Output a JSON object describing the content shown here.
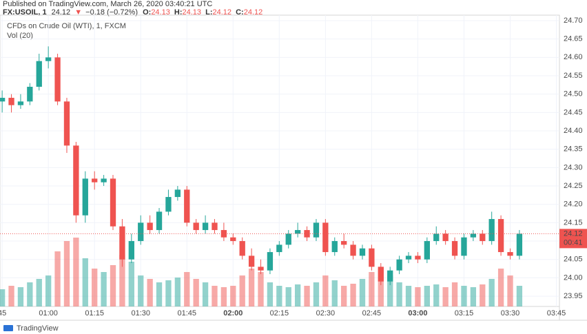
{
  "header": {
    "published": "Published on TradingView.com, March 26, 2020 03:40:21 UTC",
    "symbol": "FX:USOIL, 1",
    "last": "24.12",
    "arrow": "▼",
    "change": "−0.18 (−0.72%)",
    "o_label": "O:",
    "o": "24.13",
    "h_label": "H:",
    "h": "24.13",
    "l_label": "L:",
    "l": "24.12",
    "c_label": "C:",
    "c": "24.12"
  },
  "footer": {
    "brand": "TradingView"
  },
  "chart_data": {
    "type": "candlestick",
    "legend": [
      "CFDs on Crude Oil (WTI), 1, FXCM",
      "Vol (20)"
    ],
    "up_color": "#26a69a",
    "down_color": "#ef5350",
    "x": [
      45,
      48,
      51,
      54,
      57,
      60,
      63,
      66,
      69,
      72,
      75,
      78,
      81,
      84,
      87,
      90,
      93,
      96,
      99,
      102,
      105,
      108,
      111,
      114,
      117,
      120,
      123,
      126,
      129,
      132,
      135,
      138,
      141,
      144,
      147,
      150,
      153,
      156,
      159,
      162,
      165,
      168,
      171,
      174,
      177,
      180,
      183,
      186,
      189,
      192,
      195,
      198,
      201,
      204,
      207,
      210,
      213
    ],
    "open": [
      24.48,
      24.49,
      24.47,
      24.48,
      24.52,
      24.59,
      24.6,
      24.48,
      24.36,
      24.17,
      24.27,
      24.26,
      24.27,
      24.14,
      24.05,
      24.1,
      24.15,
      24.13,
      24.18,
      24.22,
      24.24,
      24.15,
      24.13,
      24.15,
      24.13,
      24.11,
      24.1,
      24.06,
      24.03,
      24.02,
      24.07,
      24.09,
      24.12,
      24.13,
      24.11,
      24.15,
      24.07,
      24.1,
      24.09,
      24.06,
      24.08,
      24.03,
      23.99,
      24.02,
      24.05,
      24.06,
      24.05,
      24.1,
      24.12,
      24.1,
      24.06,
      24.11,
      24.12,
      24.1,
      24.16,
      24.07,
      24.06
    ],
    "high": [
      24.51,
      24.5,
      24.5,
      24.53,
      24.61,
      24.63,
      24.61,
      24.49,
      24.37,
      24.29,
      24.29,
      24.28,
      24.28,
      24.16,
      24.12,
      24.17,
      24.17,
      24.19,
      24.24,
      24.25,
      24.25,
      24.16,
      24.17,
      24.16,
      24.15,
      24.12,
      24.11,
      24.08,
      24.05,
      24.08,
      24.1,
      24.13,
      24.15,
      24.14,
      24.16,
      24.16,
      24.11,
      24.12,
      24.1,
      24.09,
      24.09,
      24.04,
      24.03,
      24.06,
      24.07,
      24.07,
      24.11,
      24.14,
      24.13,
      24.11,
      24.12,
      24.13,
      24.13,
      24.18,
      24.17,
      24.08,
      24.13
    ],
    "low": [
      24.45,
      24.45,
      24.46,
      24.47,
      24.51,
      24.57,
      24.47,
      24.34,
      24.15,
      24.15,
      24.24,
      24.25,
      24.13,
      24.03,
      24.04,
      24.09,
      24.12,
      24.12,
      24.17,
      24.21,
      24.14,
      24.12,
      24.12,
      24.12,
      24.1,
      24.09,
      24.05,
      24.02,
      24.01,
      24.01,
      24.06,
      24.08,
      24.11,
      24.1,
      24.1,
      24.06,
      24.06,
      24.08,
      24.05,
      24.05,
      24.02,
      23.98,
      23.98,
      24.01,
      24.04,
      24.04,
      24.04,
      24.09,
      24.09,
      24.05,
      24.05,
      24.1,
      24.09,
      24.09,
      24.06,
      24.05,
      24.05
    ],
    "close": [
      24.49,
      24.47,
      24.48,
      24.52,
      24.59,
      24.6,
      24.48,
      24.36,
      24.17,
      24.27,
      24.26,
      24.27,
      24.14,
      24.05,
      24.1,
      24.15,
      24.13,
      24.18,
      24.22,
      24.24,
      24.15,
      24.13,
      24.15,
      24.13,
      24.11,
      24.1,
      24.06,
      24.03,
      24.02,
      24.07,
      24.09,
      24.12,
      24.13,
      24.11,
      24.15,
      24.07,
      24.1,
      24.09,
      24.06,
      24.08,
      24.03,
      23.99,
      24.02,
      24.05,
      24.06,
      24.05,
      24.1,
      24.12,
      24.1,
      24.06,
      24.11,
      24.12,
      24.1,
      24.16,
      24.07,
      24.06,
      24.12
    ],
    "volume": [
      25,
      30,
      28,
      35,
      40,
      45,
      80,
      95,
      100,
      70,
      55,
      50,
      60,
      75,
      65,
      45,
      40,
      35,
      38,
      42,
      50,
      40,
      35,
      30,
      28,
      30,
      45,
      55,
      50,
      35,
      30,
      28,
      32,
      30,
      35,
      45,
      38,
      30,
      33,
      40,
      50,
      55,
      45,
      35,
      30,
      28,
      30,
      32,
      28,
      35,
      30,
      28,
      32,
      40,
      55,
      45,
      30
    ],
    "vlim": [
      0,
      105
    ],
    "last_price": 24.12,
    "last_label": "24.12",
    "countdown": "00:41",
    "xlim": [
      44.3,
      226
    ],
    "ylim": [
      23.922,
      24.715
    ],
    "xticks": [
      45,
      {
        "value": 60,
        "label": "01:00"
      },
      {
        "value": 75,
        "label": "01:15"
      },
      {
        "value": 90,
        "label": "01:30"
      },
      {
        "value": 105,
        "label": "01:45"
      },
      {
        "value": 120,
        "label": "02:00"
      },
      {
        "value": 135,
        "label": "02:15"
      },
      {
        "value": 150,
        "label": "02:30"
      },
      {
        "value": 165,
        "label": "02:45"
      },
      {
        "value": 180,
        "label": "03:00"
      },
      {
        "value": 195,
        "label": "03:15"
      },
      {
        "value": 210,
        "label": "03:30"
      },
      {
        "value": 225,
        "label": "03:45"
      }
    ],
    "yticks": [
      {
        "value": 23.95,
        "label": "23.95"
      },
      {
        "value": 24.0,
        "label": "24.00"
      },
      24.05,
      {
        "value": 24.1,
        "label": "24.10"
      },
      24.15,
      {
        "value": 24.2,
        "label": "24.20"
      },
      24.25,
      {
        "value": 24.3,
        "label": "24.30"
      },
      24.35,
      {
        "value": 24.4,
        "label": "24.40"
      },
      24.45,
      {
        "value": 24.5,
        "label": "24.50"
      },
      24.55,
      {
        "value": 24.6,
        "label": "24.60"
      },
      24.65,
      {
        "value": 24.7,
        "label": "24.70"
      }
    ],
    "grid": true
  }
}
